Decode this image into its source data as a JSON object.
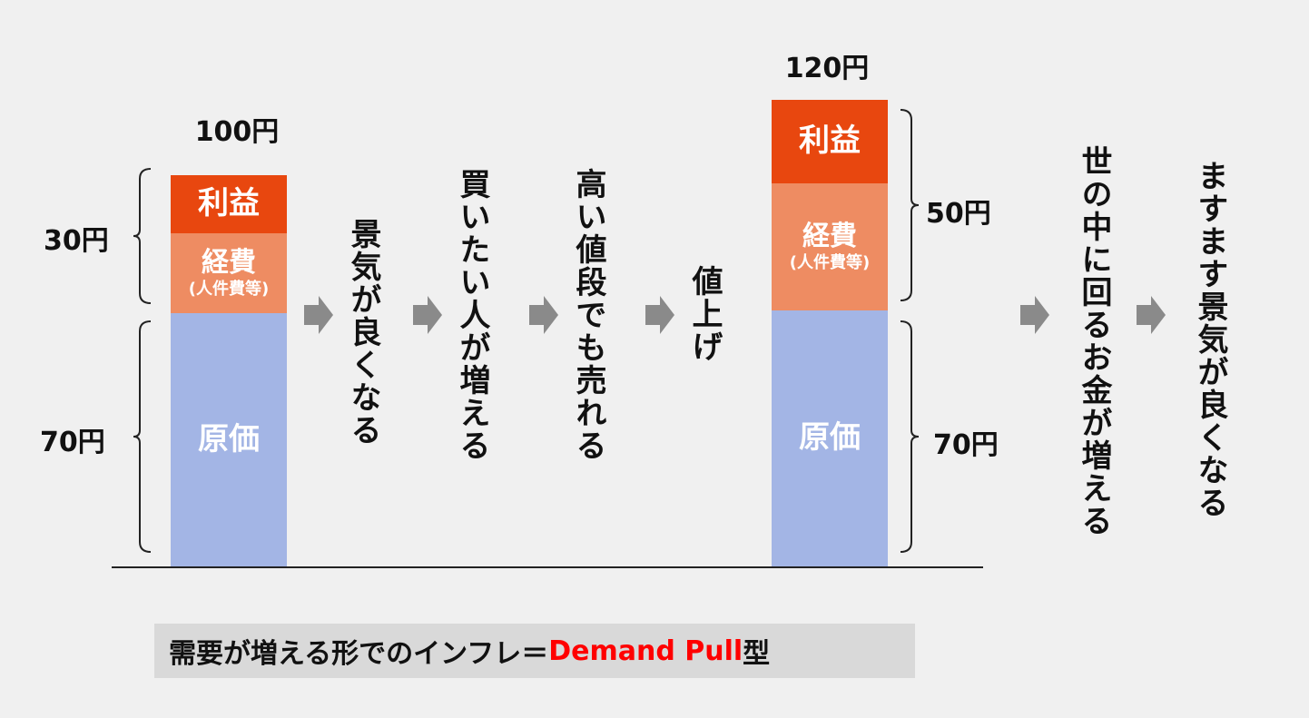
{
  "left_bar": {
    "total": "100円",
    "profit": "利益",
    "expense": "経費",
    "expense_sub": "(人件費等)",
    "cost": "原価",
    "upper_amount": "30円",
    "lower_amount": "70円"
  },
  "right_bar": {
    "total": "120円",
    "profit": "利益",
    "expense": "経費",
    "expense_sub": "(人件費等)",
    "cost": "原価",
    "upper_amount": "50円",
    "lower_amount": "70円"
  },
  "steps": [
    "景気が良くなる",
    "買いたい人が増える",
    "高い値段でも売れる",
    "値上げ",
    "世の中に回るお金が増える",
    "ますます景気が良くなる"
  ],
  "caption": {
    "prefix": "需要が増える形でのインフレ＝",
    "highlight": "Demand Pull",
    "suffix": " 型"
  },
  "colors": {
    "profit": "#e8470f",
    "expense": "#ee8c62",
    "cost": "#a3b5e5",
    "arrow": "#8a8a8a",
    "highlight": "#ff0000"
  }
}
